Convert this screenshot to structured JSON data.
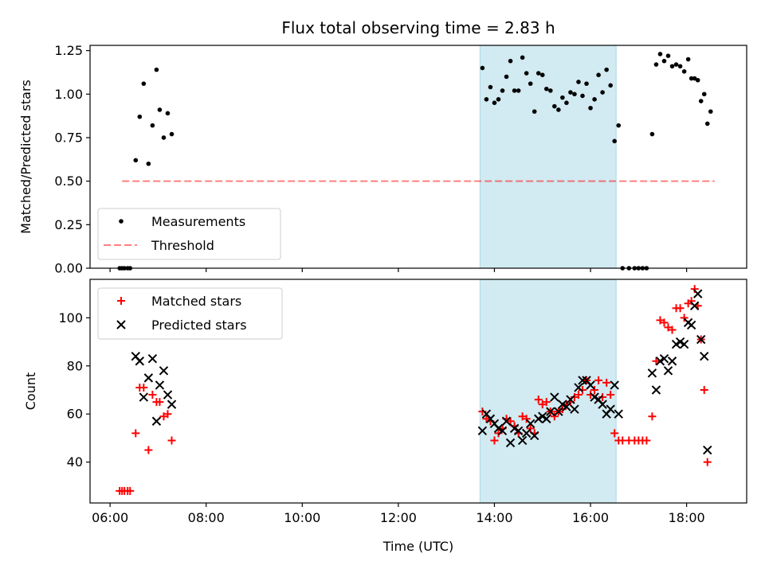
{
  "title": "Flux total observing time = 2.83 h",
  "colors": {
    "measurement": "#000000",
    "threshold": "#ff0000",
    "matched": "#ff0000",
    "predicted": "#000000",
    "span": "#add8e6"
  },
  "chart_data": [
    {
      "type": "scatter",
      "ylabel": "Matched/Predicted stars",
      "ylim": [
        0,
        1.28
      ],
      "xlim": [
        "05:35",
        "19:15"
      ],
      "yticks": [
        "0.00",
        "0.25",
        "0.50",
        "0.75",
        "1.00",
        "1.25"
      ],
      "yticks_values": [
        0,
        0.25,
        0.5,
        0.75,
        1.0,
        1.25
      ],
      "legend": {
        "placement": "lower-left",
        "entries": [
          "Measurements",
          "Threshold"
        ]
      },
      "threshold": {
        "name": "Threshold",
        "y": 0.5,
        "x_start": "06:15",
        "x_end": "18:35"
      },
      "shaded_span": {
        "x_start": "13:42",
        "x_end": "16:32"
      },
      "series": [
        {
          "name": "Measurements",
          "marker": "dot",
          "points": [
            [
              "06:12",
              0.0
            ],
            [
              "06:15",
              0.0
            ],
            [
              "06:18",
              0.0
            ],
            [
              "06:22",
              0.0
            ],
            [
              "06:25",
              0.0
            ],
            [
              "06:32",
              0.62
            ],
            [
              "06:37",
              0.87
            ],
            [
              "06:42",
              1.06
            ],
            [
              "06:48",
              0.6
            ],
            [
              "06:53",
              0.82
            ],
            [
              "06:58",
              1.14
            ],
            [
              "07:02",
              0.91
            ],
            [
              "07:07",
              0.75
            ],
            [
              "07:12",
              0.89
            ],
            [
              "07:17",
              0.77
            ],
            [
              "13:45",
              1.15
            ],
            [
              "13:50",
              0.97
            ],
            [
              "13:55",
              1.04
            ],
            [
              "14:00",
              0.95
            ],
            [
              "14:05",
              0.97
            ],
            [
              "14:10",
              1.02
            ],
            [
              "14:15",
              1.1
            ],
            [
              "14:20",
              1.19
            ],
            [
              "14:25",
              1.02
            ],
            [
              "14:30",
              1.02
            ],
            [
              "14:35",
              1.21
            ],
            [
              "14:40",
              1.12
            ],
            [
              "14:45",
              1.06
            ],
            [
              "14:50",
              0.9
            ],
            [
              "14:55",
              1.12
            ],
            [
              "15:00",
              1.11
            ],
            [
              "15:05",
              1.03
            ],
            [
              "15:10",
              1.02
            ],
            [
              "15:15",
              0.93
            ],
            [
              "15:20",
              0.91
            ],
            [
              "15:25",
              0.98
            ],
            [
              "15:30",
              0.95
            ],
            [
              "15:35",
              1.01
            ],
            [
              "15:40",
              1.0
            ],
            [
              "15:45",
              1.07
            ],
            [
              "15:50",
              0.99
            ],
            [
              "15:55",
              1.06
            ],
            [
              "16:00",
              0.92
            ],
            [
              "16:05",
              0.97
            ],
            [
              "16:10",
              1.11
            ],
            [
              "16:15",
              1.01
            ],
            [
              "16:20",
              1.14
            ],
            [
              "16:25",
              1.05
            ],
            [
              "16:30",
              0.73
            ],
            [
              "16:35",
              0.82
            ],
            [
              "16:40",
              0.0
            ],
            [
              "16:48",
              0.0
            ],
            [
              "16:55",
              0.0
            ],
            [
              "17:00",
              0.0
            ],
            [
              "17:05",
              0.0
            ],
            [
              "17:10",
              0.0
            ],
            [
              "17:17",
              0.77
            ],
            [
              "17:22",
              1.17
            ],
            [
              "17:27",
              1.23
            ],
            [
              "17:32",
              1.19
            ],
            [
              "17:37",
              1.22
            ],
            [
              "17:42",
              1.16
            ],
            [
              "17:47",
              1.17
            ],
            [
              "17:52",
              1.16
            ],
            [
              "17:57",
              1.13
            ],
            [
              "18:02",
              1.2
            ],
            [
              "18:06",
              1.09
            ],
            [
              "18:10",
              1.09
            ],
            [
              "18:14",
              1.08
            ],
            [
              "18:18",
              0.96
            ],
            [
              "18:22",
              1.0
            ],
            [
              "18:26",
              0.83
            ],
            [
              "18:30",
              0.9
            ]
          ]
        }
      ]
    },
    {
      "type": "scatter",
      "xlabel": "Time (UTC)",
      "ylabel": "Count",
      "ylim": [
        23,
        116
      ],
      "xlim": [
        "05:35",
        "19:15"
      ],
      "xticks": [
        "06:00",
        "08:00",
        "10:00",
        "12:00",
        "14:00",
        "16:00",
        "18:00"
      ],
      "yticks": [
        "40",
        "60",
        "80",
        "100"
      ],
      "yticks_values": [
        40,
        60,
        80,
        100
      ],
      "legend": {
        "placement": "top-left",
        "entries": [
          "Matched stars",
          "Predicted stars"
        ]
      },
      "shaded_span": {
        "x_start": "13:42",
        "x_end": "16:32"
      },
      "series": [
        {
          "name": "Matched stars",
          "marker": "plus",
          "points": [
            [
              "06:12",
              28
            ],
            [
              "06:15",
              28
            ],
            [
              "06:18",
              28
            ],
            [
              "06:22",
              28
            ],
            [
              "06:25",
              28
            ],
            [
              "06:32",
              52
            ],
            [
              "06:37",
              71
            ],
            [
              "06:42",
              71
            ],
            [
              "06:48",
              45
            ],
            [
              "06:53",
              68
            ],
            [
              "06:58",
              65
            ],
            [
              "07:02",
              65
            ],
            [
              "07:07",
              59
            ],
            [
              "07:12",
              60
            ],
            [
              "07:17",
              49
            ],
            [
              "13:45",
              61
            ],
            [
              "13:50",
              58
            ],
            [
              "13:55",
              57
            ],
            [
              "14:00",
              49
            ],
            [
              "14:05",
              52
            ],
            [
              "14:10",
              54
            ],
            [
              "14:15",
              58
            ],
            [
              "14:20",
              57
            ],
            [
              "14:25",
              55
            ],
            [
              "14:30",
              52
            ],
            [
              "14:35",
              59
            ],
            [
              "14:40",
              58
            ],
            [
              "14:45",
              54
            ],
            [
              "14:50",
              52
            ],
            [
              "14:55",
              66
            ],
            [
              "15:00",
              64
            ],
            [
              "15:05",
              65
            ],
            [
              "15:10",
              61
            ],
            [
              "15:15",
              59
            ],
            [
              "15:20",
              61
            ],
            [
              "15:25",
              62
            ],
            [
              "15:30",
              64
            ],
            [
              "15:35",
              65
            ],
            [
              "15:40",
              67
            ],
            [
              "15:45",
              68
            ],
            [
              "15:50",
              70
            ],
            [
              "15:55",
              74
            ],
            [
              "16:00",
              68
            ],
            [
              "16:05",
              70
            ],
            [
              "16:10",
              74
            ],
            [
              "16:15",
              67
            ],
            [
              "16:20",
              73
            ],
            [
              "16:25",
              68
            ],
            [
              "16:30",
              52
            ],
            [
              "16:35",
              49
            ],
            [
              "16:40",
              49
            ],
            [
              "16:48",
              49
            ],
            [
              "16:55",
              49
            ],
            [
              "17:00",
              49
            ],
            [
              "17:05",
              49
            ],
            [
              "17:10",
              49
            ],
            [
              "17:17",
              59
            ],
            [
              "17:22",
              82
            ],
            [
              "17:27",
              99
            ],
            [
              "17:32",
              98
            ],
            [
              "17:37",
              96
            ],
            [
              "17:42",
              95
            ],
            [
              "17:47",
              104
            ],
            [
              "17:52",
              104
            ],
            [
              "17:57",
              100
            ],
            [
              "18:02",
              106
            ],
            [
              "18:06",
              107
            ],
            [
              "18:10",
              112
            ],
            [
              "18:14",
              105
            ],
            [
              "18:18",
              91
            ],
            [
              "18:22",
              70
            ],
            [
              "18:26",
              40
            ]
          ]
        },
        {
          "name": "Predicted stars",
          "marker": "x",
          "points": [
            [
              "06:32",
              84
            ],
            [
              "06:37",
              82
            ],
            [
              "06:42",
              67
            ],
            [
              "06:48",
              75
            ],
            [
              "06:53",
              83
            ],
            [
              "06:58",
              57
            ],
            [
              "07:02",
              72
            ],
            [
              "07:07",
              78
            ],
            [
              "07:12",
              68
            ],
            [
              "07:17",
              64
            ],
            [
              "13:45",
              53
            ],
            [
              "13:50",
              60
            ],
            [
              "13:55",
              58
            ],
            [
              "14:00",
              56
            ],
            [
              "14:05",
              54
            ],
            [
              "14:10",
              53
            ],
            [
              "14:15",
              57
            ],
            [
              "14:20",
              48
            ],
            [
              "14:25",
              54
            ],
            [
              "14:30",
              53
            ],
            [
              "14:35",
              49
            ],
            [
              "14:40",
              52
            ],
            [
              "14:45",
              56
            ],
            [
              "14:50",
              51
            ],
            [
              "14:55",
              58
            ],
            [
              "15:00",
              59
            ],
            [
              "15:05",
              58
            ],
            [
              "15:10",
              61
            ],
            [
              "15:15",
              67
            ],
            [
              "15:20",
              61
            ],
            [
              "15:25",
              64
            ],
            [
              "15:30",
              63
            ],
            [
              "15:35",
              66
            ],
            [
              "15:40",
              62
            ],
            [
              "15:45",
              71
            ],
            [
              "15:50",
              74
            ],
            [
              "15:55",
              74
            ],
            [
              "16:00",
              72
            ],
            [
              "16:05",
              67
            ],
            [
              "16:10",
              66
            ],
            [
              "16:15",
              64
            ],
            [
              "16:20",
              60
            ],
            [
              "16:25",
              62
            ],
            [
              "16:30",
              72
            ],
            [
              "16:35",
              60
            ],
            [
              "17:17",
              77
            ],
            [
              "17:22",
              70
            ],
            [
              "17:27",
              82
            ],
            [
              "17:32",
              83
            ],
            [
              "17:37",
              78
            ],
            [
              "17:42",
              82
            ],
            [
              "17:47",
              89
            ],
            [
              "17:52",
              90
            ],
            [
              "17:57",
              89
            ],
            [
              "18:02",
              98
            ],
            [
              "18:06",
              97
            ],
            [
              "18:10",
              105
            ],
            [
              "18:14",
              110
            ],
            [
              "18:18",
              91
            ],
            [
              "18:22",
              84
            ],
            [
              "18:26",
              45
            ]
          ]
        }
      ]
    }
  ]
}
